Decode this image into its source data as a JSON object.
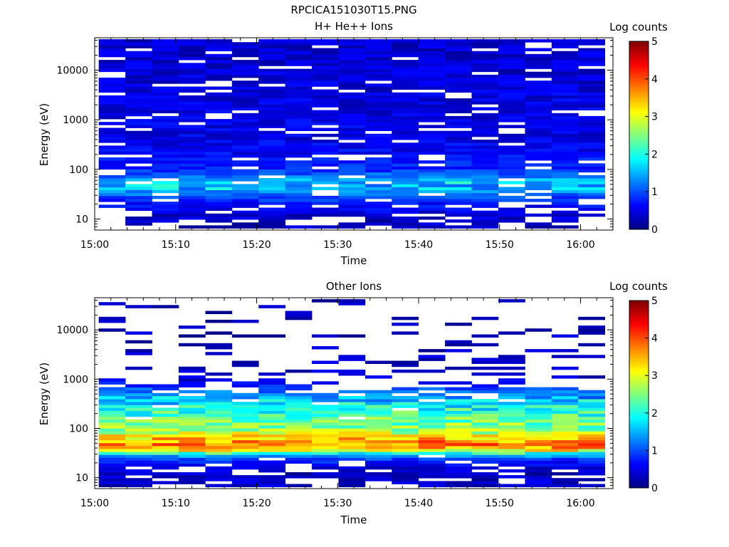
{
  "figure": {
    "title": "RPCICA151030T15.PNG"
  },
  "chart_data": [
    {
      "type": "heatmap",
      "title": "H+ He++ Ions",
      "xlabel": "Time",
      "ylabel": "Energy (eV)",
      "x_ticks": [
        "15:00",
        "15:10",
        "15:20",
        "15:30",
        "15:40",
        "15:50",
        "16:00"
      ],
      "x_range_minutes": [
        0,
        64
      ],
      "y_scale": "log",
      "y_range": [
        6,
        45000
      ],
      "y_ticks": [
        "10",
        "100",
        "1000",
        "10000"
      ],
      "colorbar": {
        "label": "Log counts",
        "range": [
          0,
          5
        ],
        "ticks": [
          "0",
          "1",
          "2",
          "3",
          "4",
          "5"
        ]
      },
      "time_bins": 19,
      "energy_profile": [
        {
          "energy": 8,
          "level": 0.3,
          "gap": 0.4
        },
        {
          "energy": 12,
          "level": 0.4,
          "gap": 0.25
        },
        {
          "energy": 18,
          "level": 0.6,
          "gap": 0.25
        },
        {
          "energy": 27,
          "level": 0.9,
          "gap": 0.15
        },
        {
          "energy": 40,
          "level": 1.5,
          "gap": 0.05
        },
        {
          "energy": 55,
          "level": 1.7,
          "gap": 0.05
        },
        {
          "energy": 75,
          "level": 1.1,
          "gap": 0.1
        },
        {
          "energy": 110,
          "level": 0.8,
          "gap": 0.2
        },
        {
          "energy": 200,
          "level": 0.6,
          "gap": 0.12
        },
        {
          "energy": 500,
          "level": 0.5,
          "gap": 0.1
        },
        {
          "energy": 1500,
          "level": 0.5,
          "gap": 0.1
        },
        {
          "energy": 5000,
          "level": 0.45,
          "gap": 0.12
        },
        {
          "energy": 15000,
          "level": 0.4,
          "gap": 0.1
        },
        {
          "energy": 40000,
          "level": 0.4,
          "gap": 0.1
        }
      ]
    },
    {
      "type": "heatmap",
      "title": "Other Ions",
      "xlabel": "Time",
      "ylabel": "Energy (eV)",
      "x_ticks": [
        "15:00",
        "15:10",
        "15:20",
        "15:30",
        "15:40",
        "15:50",
        "16:00"
      ],
      "x_range_minutes": [
        0,
        64
      ],
      "y_scale": "log",
      "y_range": [
        6,
        45000
      ],
      "y_ticks": [
        "10",
        "100",
        "1000",
        "10000"
      ],
      "colorbar": {
        "label": "Log counts",
        "range": [
          0,
          5
        ],
        "ticks": [
          "0",
          "1",
          "2",
          "3",
          "4",
          "5"
        ]
      },
      "time_bins": 19,
      "energy_profile": [
        {
          "energy": 8,
          "level": 0.35,
          "gap": 0.3
        },
        {
          "energy": 12,
          "level": 0.3,
          "gap": 0.35
        },
        {
          "energy": 18,
          "level": 0.5,
          "gap": 0.2
        },
        {
          "energy": 25,
          "level": 1.0,
          "gap": 0.05
        },
        {
          "energy": 30,
          "level": 1.8,
          "gap": 0.0
        },
        {
          "energy": 38,
          "level": 3.5,
          "gap": 0.0
        },
        {
          "energy": 50,
          "level": 3.8,
          "gap": 0.0
        },
        {
          "energy": 70,
          "level": 3.1,
          "gap": 0.0
        },
        {
          "energy": 100,
          "level": 2.6,
          "gap": 0.0
        },
        {
          "energy": 160,
          "level": 2.3,
          "gap": 0.02
        },
        {
          "energy": 250,
          "level": 2.0,
          "gap": 0.05
        },
        {
          "energy": 400,
          "level": 1.6,
          "gap": 0.15
        },
        {
          "energy": 650,
          "level": 1.0,
          "gap": 0.45
        },
        {
          "energy": 1000,
          "level": 0.4,
          "gap": 0.7
        },
        {
          "energy": 2000,
          "level": 0.3,
          "gap": 0.8
        },
        {
          "energy": 4000,
          "level": 0.3,
          "gap": 0.85
        },
        {
          "energy": 10000,
          "level": 0.25,
          "gap": 0.85
        },
        {
          "energy": 22000,
          "level": 0.25,
          "gap": 0.9
        }
      ]
    }
  ]
}
